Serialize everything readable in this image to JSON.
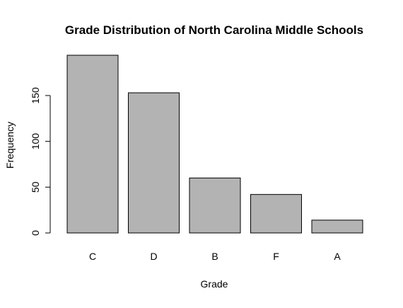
{
  "chart_data": {
    "type": "bar",
    "title": "Grade Distribution of North Carolina Middle Schools",
    "xlabel": "Grade",
    "ylabel": "Frequency",
    "categories": [
      "C",
      "D",
      "B",
      "F",
      "A"
    ],
    "values": [
      194,
      153,
      60,
      42,
      14
    ],
    "ylim": [
      0,
      194
    ],
    "yticks": [
      0,
      50,
      100,
      150
    ],
    "bar_color": "#b3b3b3",
    "grid": false,
    "legend": "none"
  }
}
